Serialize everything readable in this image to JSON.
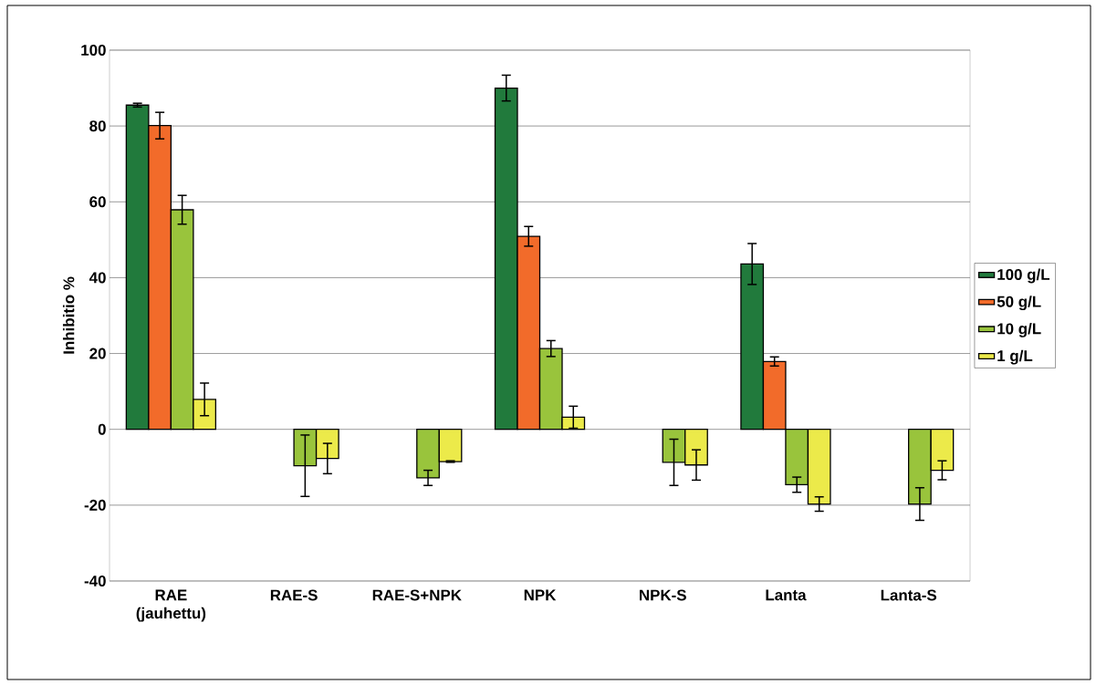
{
  "chart_data": {
    "type": "bar",
    "ylabel": "Inhibitio %",
    "categories": [
      "RAE (jauhettu)",
      "RAE-S",
      "RAE-S+NPK",
      "NPK",
      "NPK-S",
      "Lanta",
      "Lanta-S"
    ],
    "series": [
      {
        "name": "100 g/L",
        "color": "#217a3c",
        "values": [
          85.5,
          null,
          null,
          90.0,
          null,
          43.6,
          null
        ],
        "errors": [
          0.5,
          null,
          null,
          3.4,
          null,
          5.4,
          null
        ]
      },
      {
        "name": "50 g/L",
        "color": "#f26b2a",
        "values": [
          80.1,
          null,
          null,
          50.9,
          null,
          17.9,
          null
        ],
        "errors": [
          3.5,
          null,
          null,
          2.6,
          null,
          1.2,
          null
        ]
      },
      {
        "name": "10 g/L",
        "color": "#99c43c",
        "values": [
          57.9,
          -9.6,
          -12.8,
          21.3,
          -8.7,
          -14.6,
          -19.7
        ],
        "errors": [
          3.8,
          8.1,
          2.0,
          2.1,
          6.1,
          2.0,
          4.3
        ]
      },
      {
        "name": "1 g/L",
        "color": "#ecea4a",
        "values": [
          7.9,
          -7.7,
          -8.5,
          3.2,
          -9.4,
          -19.7,
          -10.8
        ],
        "errors": [
          4.3,
          4.0,
          0.2,
          2.9,
          4.0,
          1.9,
          2.5
        ]
      }
    ],
    "ylim": [
      -40,
      100
    ],
    "yticks": [
      -40,
      -20,
      0,
      20,
      40,
      60,
      80,
      100
    ],
    "grid": "y",
    "legend": "right"
  }
}
